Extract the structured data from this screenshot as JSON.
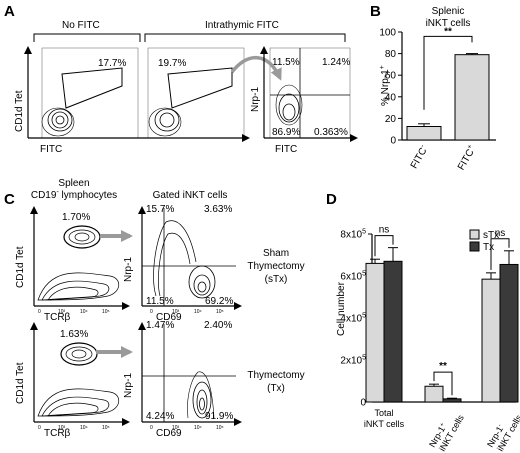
{
  "panels": {
    "A": {
      "letter": "A",
      "group_no_fitc": "No FITC",
      "group_intrathymic": "Intrathymic FITC",
      "gate_pct_1": "17.7%",
      "gate_pct_2": "19.7%",
      "q_ul": "11.5%",
      "q_ur": "1.24%",
      "q_ll": "86.9%",
      "q_lr": "0.363%",
      "y_label_1": "CD1d Tet",
      "x_label_1": "FITC",
      "y_label_2": "Nrp-1",
      "x_label_2": "FITC"
    },
    "B": {
      "letter": "B",
      "title_line1": "Splenic",
      "title_line2": "iNKT cells",
      "ylabel": "% Nrp-1",
      "ylabel_sup": "+",
      "sig": "**"
    },
    "C": {
      "letter": "C",
      "spleen_line1": "Spleen",
      "spleen_line2_pre": "CD19",
      "spleen_line2_sup": "-",
      "spleen_line2_post": " lymphocytes",
      "gated": "Gated iNKT cells",
      "row1_pct": "1.70%",
      "row2_pct": "1.63%",
      "row1_q_ul": "15.7%",
      "row1_q_ur": "3.63%",
      "row1_q_ll": "11.5%",
      "row1_q_lr": "69.2%",
      "row2_q_ul": "1.47%",
      "row2_q_ur": "2.40%",
      "row2_q_ll": "4.24%",
      "row2_q_lr": "91.9%",
      "ylab_tet": "CD1d Tet",
      "xlab_tcr": "TCRβ",
      "ylab_nrp": "Nrp-1",
      "xlab_cd69": "CD69",
      "sham_line1": "Sham",
      "sham_line2": "Thymectomy",
      "sham_line3": "(sTx)",
      "tx_line1": "Thymectomy",
      "tx_line2": "(Tx)"
    },
    "D": {
      "letter": "D",
      "ylabel": "Cell number",
      "g1_line1": "Total",
      "g1_line2": "iNKT cells",
      "g2_pre": "Nrp-1",
      "g2_sup": "+",
      "g2_line2": "iNKT cells",
      "g3_pre": "Nrp-1",
      "g3_sup": "-",
      "g3_line2": "iNKT cells",
      "ns1": "ns",
      "sig": "**",
      "ns2": "ns",
      "legend_1": "sTx",
      "legend_2": "Tx"
    }
  },
  "tick_labels": {
    "decade_low": "0",
    "decade_2": "10²",
    "decade_3": "10³",
    "decade_4": "10⁴",
    "decade_5": "10⁵"
  },
  "colors": {
    "bar_light": "#d9d9d9",
    "bar_dark": "#3a3a3a",
    "arrow": "#9a9a9a"
  },
  "chart_data": [
    {
      "type": "bar",
      "panel": "B",
      "categories": [
        "FITC-",
        "FITC+"
      ],
      "tick_labels": [
        {
          "main": "FITC",
          "sup": "-"
        },
        {
          "main": "FITC",
          "sup": "+"
        }
      ],
      "values": [
        12.5,
        79
      ],
      "errors": [
        2.5,
        1
      ],
      "ylim": [
        0,
        100
      ],
      "yticks": [
        0,
        20,
        40,
        60,
        80,
        100
      ],
      "ylabel": "% Nrp-1+",
      "title": "Splenic iNKT cells"
    },
    {
      "type": "bar",
      "panel": "D",
      "categories": [
        "Total iNKT cells",
        "Nrp-1+ iNKT cells",
        "Nrp-1- iNKT cells"
      ],
      "ylim": [
        0,
        800000
      ],
      "yticks": [
        0,
        200000,
        400000,
        600000,
        800000
      ],
      "ytick_labels": [
        {
          "main": "0",
          "sup": ""
        },
        {
          "main": "2x10",
          "sup": "5"
        },
        {
          "main": "4x10",
          "sup": "5"
        },
        {
          "main": "6x10",
          "sup": "5"
        },
        {
          "main": "8x10",
          "sup": "5"
        }
      ],
      "ylabel": "Cell number",
      "series": [
        {
          "name": "sTx",
          "values": [
            660000,
            75000,
            585000
          ],
          "errors": [
            20000,
            10000,
            30000
          ]
        },
        {
          "name": "Tx",
          "values": [
            670000,
            15000,
            655000
          ],
          "errors": [
            65000,
            3000,
            65000
          ]
        }
      ],
      "legend": "top-right"
    }
  ]
}
